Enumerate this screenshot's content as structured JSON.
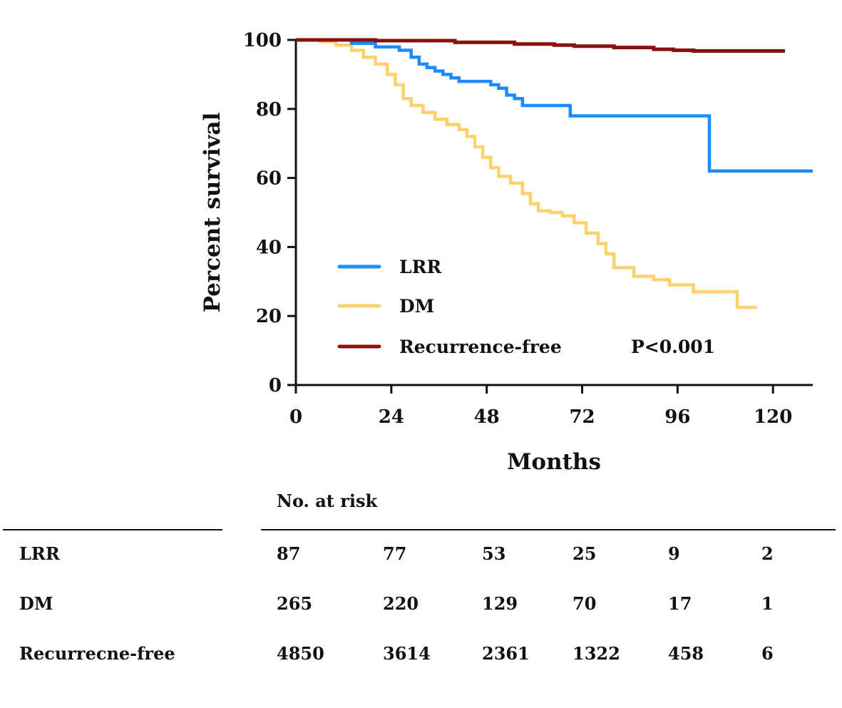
{
  "chart_data": {
    "type": "line",
    "subtype": "kaplan-meier step",
    "title": "",
    "xlabel": "Months",
    "ylabel": "Percent survival",
    "xlim": [
      0,
      130
    ],
    "ylim": [
      0,
      100
    ],
    "xticks": [
      "0",
      "24",
      "48",
      "72",
      "96",
      "120"
    ],
    "yticks": [
      "0",
      "20",
      "40",
      "60",
      "80",
      "100"
    ],
    "annotation": "P<0.001",
    "legend_position": "center-left",
    "series": [
      {
        "name": "LRR",
        "color": "#1a8cff",
        "points": [
          [
            0,
            100
          ],
          [
            14,
            100
          ],
          [
            14,
            99
          ],
          [
            20,
            99
          ],
          [
            20,
            98
          ],
          [
            26,
            98
          ],
          [
            26,
            97
          ],
          [
            29,
            97
          ],
          [
            29,
            95
          ],
          [
            31,
            95
          ],
          [
            31,
            93
          ],
          [
            33,
            93
          ],
          [
            33,
            92
          ],
          [
            35,
            92
          ],
          [
            35,
            91
          ],
          [
            37,
            91
          ],
          [
            37,
            90
          ],
          [
            39,
            90
          ],
          [
            39,
            89
          ],
          [
            41,
            89
          ],
          [
            41,
            88
          ],
          [
            49,
            88
          ],
          [
            49,
            87
          ],
          [
            51,
            87
          ],
          [
            51,
            86
          ],
          [
            53,
            86
          ],
          [
            53,
            84
          ],
          [
            55,
            84
          ],
          [
            55,
            83
          ],
          [
            57,
            83
          ],
          [
            57,
            81
          ],
          [
            69,
            81
          ],
          [
            69,
            78
          ],
          [
            104,
            78
          ],
          [
            104,
            62
          ],
          [
            130,
            62
          ]
        ]
      },
      {
        "name": "DM",
        "color": "#fdd26c",
        "points": [
          [
            0,
            100
          ],
          [
            6,
            99.5
          ],
          [
            10,
            98.5
          ],
          [
            14,
            97
          ],
          [
            17,
            95
          ],
          [
            20,
            93
          ],
          [
            23,
            90
          ],
          [
            25,
            87
          ],
          [
            27,
            83
          ],
          [
            29,
            81
          ],
          [
            32,
            79
          ],
          [
            35,
            77
          ],
          [
            38,
            75.5
          ],
          [
            41,
            74
          ],
          [
            43,
            72
          ],
          [
            45,
            69
          ],
          [
            47,
            66
          ],
          [
            49,
            63
          ],
          [
            51,
            60.5
          ],
          [
            54,
            58.5
          ],
          [
            57,
            55.5
          ],
          [
            59,
            52.5
          ],
          [
            61,
            50.5
          ],
          [
            64,
            50
          ],
          [
            67,
            49
          ],
          [
            70,
            47
          ],
          [
            73,
            44
          ],
          [
            76,
            41
          ],
          [
            78,
            38
          ],
          [
            80,
            34
          ],
          [
            85,
            31.5
          ],
          [
            90,
            30.5
          ],
          [
            94,
            29
          ],
          [
            100,
            27
          ],
          [
            111,
            27
          ],
          [
            111,
            22.5
          ],
          [
            116,
            22.5
          ]
        ]
      },
      {
        "name": "Recurrence-free",
        "color": "#8c1010",
        "points": [
          [
            0,
            100
          ],
          [
            20,
            99.8
          ],
          [
            40,
            99.3
          ],
          [
            55,
            98.8
          ],
          [
            65,
            98.5
          ],
          [
            70,
            98.2
          ],
          [
            80,
            97.8
          ],
          [
            90,
            97.3
          ],
          [
            95,
            97
          ],
          [
            100,
            96.8
          ],
          [
            123,
            96.8
          ]
        ]
      }
    ]
  },
  "risk_table": {
    "title": "No. at risk",
    "rows": [
      {
        "label": "LRR",
        "values": [
          "87",
          "77",
          "53",
          "25",
          "9",
          "2"
        ]
      },
      {
        "label": "DM",
        "values": [
          "265",
          "220",
          "129",
          "70",
          "17",
          "1"
        ]
      },
      {
        "label": "Recurrecne-free",
        "values": [
          "4850",
          "3614",
          "2361",
          "1322",
          "458",
          "6"
        ]
      }
    ]
  }
}
